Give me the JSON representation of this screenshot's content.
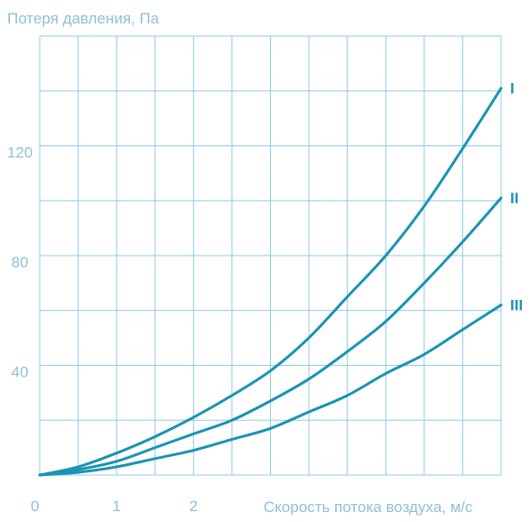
{
  "chart_data": {
    "type": "line",
    "title": "",
    "ylabel": "Потеря давления, Па",
    "xlabel": "Скорость потока воздуха, м/с",
    "xlim": [
      0,
      6
    ],
    "ylim": [
      0,
      160
    ],
    "x_ticks": [
      {
        "value": 0,
        "label": "0"
      },
      {
        "value": 1,
        "label": "1"
      },
      {
        "value": 2,
        "label": "2"
      }
    ],
    "y_ticks": [
      {
        "value": 40,
        "label": "40"
      },
      {
        "value": 80,
        "label": "80"
      },
      {
        "value": 120,
        "label": "120"
      }
    ],
    "grid": true,
    "series": [
      {
        "name": "I",
        "x": [
          0,
          0.5,
          1,
          1.5,
          2,
          2.5,
          3,
          3.5,
          4,
          4.5,
          5,
          5.5,
          6
        ],
        "values": [
          0,
          3,
          8,
          14,
          21,
          29,
          38,
          50,
          65,
          80,
          98,
          119,
          141
        ]
      },
      {
        "name": "II",
        "x": [
          0,
          0.5,
          1,
          1.5,
          2,
          2.5,
          3,
          3.5,
          4,
          4.5,
          5,
          5.5,
          6
        ],
        "values": [
          0,
          2,
          5,
          10,
          15,
          20,
          27,
          35,
          45,
          56,
          70,
          85,
          101
        ]
      },
      {
        "name": "III",
        "x": [
          0,
          0.5,
          1,
          1.5,
          2,
          2.5,
          3,
          3.5,
          4,
          4.5,
          5,
          5.5,
          6
        ],
        "values": [
          0,
          1,
          3,
          6,
          9,
          13,
          17,
          23,
          29,
          37,
          44,
          53,
          62
        ]
      }
    ],
    "colors": {
      "line": "#1a93b4",
      "grid": "#8fcbe4",
      "text": "#8fbfd6",
      "label": "#1a93b4"
    }
  }
}
